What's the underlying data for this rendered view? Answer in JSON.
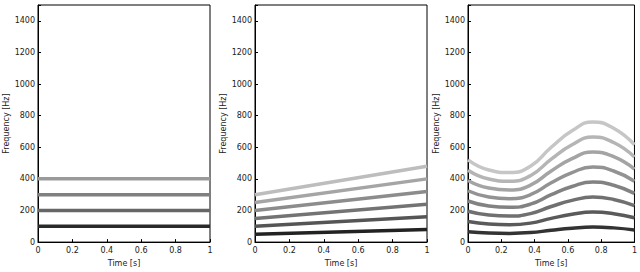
{
  "chart_data": [
    {
      "type": "line",
      "xlabel": "Time [s]",
      "ylabel": "Frequency [Hz]",
      "xlim": [
        0,
        1
      ],
      "ylim": [
        0,
        1500
      ],
      "xticks": [
        0,
        0.2,
        0.4,
        0.6,
        0.8,
        1
      ],
      "yticks": [
        0,
        200,
        400,
        600,
        800,
        1000,
        1200,
        1400
      ],
      "x": [
        0,
        1
      ],
      "series": [
        {
          "color": "#2a2a2a",
          "values": [
            100,
            100
          ]
        },
        {
          "color": "#666666",
          "values": [
            200,
            200
          ]
        },
        {
          "color": "#808080",
          "values": [
            300,
            300
          ]
        },
        {
          "color": "#9a9a9a",
          "values": [
            400,
            400
          ]
        }
      ]
    },
    {
      "type": "line",
      "xlabel": "Time [s]",
      "ylabel": "Frequency [Hz]",
      "xlim": [
        0,
        1
      ],
      "ylim": [
        0,
        1500
      ],
      "xticks": [
        0,
        0.2,
        0.4,
        0.6,
        0.8,
        1
      ],
      "yticks": [
        0,
        200,
        400,
        600,
        800,
        1000,
        1200,
        1400
      ],
      "x": [
        0,
        1
      ],
      "series": [
        {
          "color": "#222222",
          "values": [
            50,
            80
          ]
        },
        {
          "color": "#555555",
          "values": [
            100,
            160
          ]
        },
        {
          "color": "#737373",
          "values": [
            150,
            240
          ]
        },
        {
          "color": "#8c8c8c",
          "values": [
            200,
            320
          ]
        },
        {
          "color": "#a5a5a5",
          "values": [
            250,
            400
          ]
        },
        {
          "color": "#bdbdbd",
          "values": [
            300,
            480
          ]
        }
      ]
    },
    {
      "type": "line",
      "xlabel": "Time [s]",
      "ylabel": "Frequency [Hz]",
      "xlim": [
        0,
        1
      ],
      "ylim": [
        0,
        1500
      ],
      "xticks": [
        0,
        0.2,
        0.4,
        0.6,
        0.8,
        1
      ],
      "yticks": [
        0,
        200,
        400,
        600,
        800,
        1000,
        1200,
        1400
      ],
      "x": [
        0,
        0.125,
        0.25,
        0.375,
        0.5,
        0.625,
        0.75,
        0.875,
        1
      ],
      "series": [
        {
          "color": "#333333",
          "values": [
            65,
            57,
            55,
            60,
            75,
            88,
            95,
            90,
            77
          ]
        },
        {
          "color": "#5a5a5a",
          "values": [
            130,
            114,
            110,
            120,
            150,
            176,
            190,
            180,
            154
          ]
        },
        {
          "color": "#707070",
          "values": [
            195,
            171,
            165,
            180,
            225,
            264,
            285,
            270,
            231
          ]
        },
        {
          "color": "#828282",
          "values": [
            260,
            228,
            220,
            240,
            300,
            352,
            380,
            360,
            308
          ]
        },
        {
          "color": "#939393",
          "values": [
            325,
            285,
            275,
            300,
            375,
            440,
            475,
            450,
            385
          ]
        },
        {
          "color": "#a4a4a4",
          "values": [
            390,
            342,
            330,
            360,
            450,
            528,
            570,
            540,
            462
          ]
        },
        {
          "color": "#b5b5b5",
          "values": [
            455,
            399,
            385,
            420,
            525,
            616,
            665,
            630,
            539
          ]
        },
        {
          "color": "#c6c6c6",
          "values": [
            520,
            456,
            440,
            480,
            600,
            704,
            760,
            720,
            616
          ]
        }
      ]
    }
  ]
}
